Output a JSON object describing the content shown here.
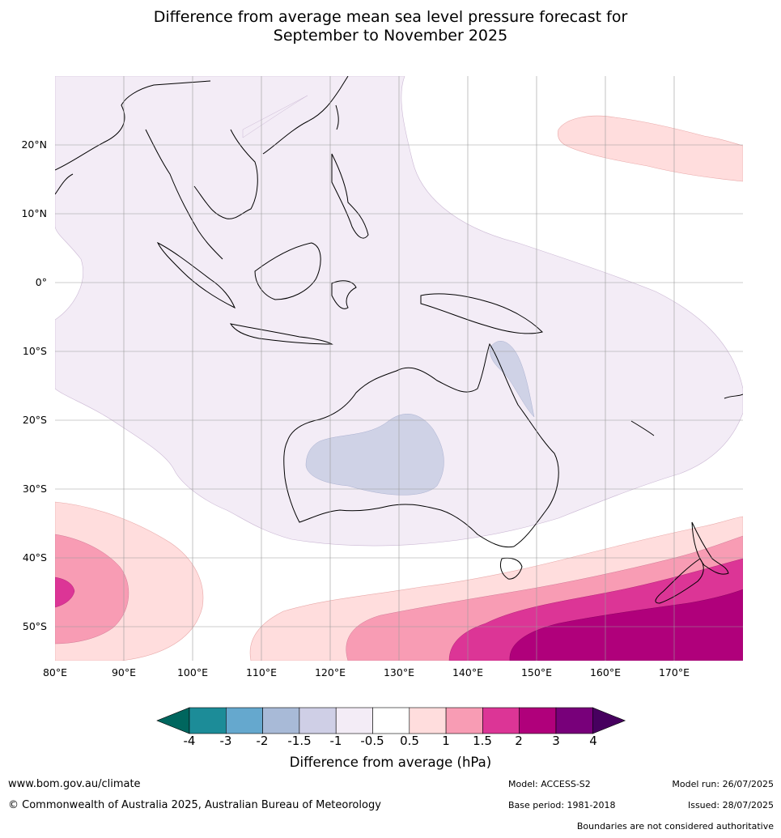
{
  "title_line1": "Difference from average mean sea level pressure forecast for",
  "title_line2": "September to November 2025",
  "lat_labels": [
    "20°N",
    "10°N",
    "0°",
    "10°S",
    "20°S",
    "30°S",
    "40°S",
    "50°S"
  ],
  "lon_labels": [
    "80°E",
    "90°E",
    "100°E",
    "110°E",
    "120°E",
    "130°E",
    "140°E",
    "150°E",
    "160°E",
    "170°E"
  ],
  "colorbar": {
    "label": "Difference from average (hPa)",
    "ticks": [
      "-4",
      "-3",
      "-2",
      "-1.5",
      "-1",
      "-0.5",
      "0.5",
      "1",
      "1.5",
      "2",
      "3",
      "4"
    ],
    "colors": [
      "#1c8c98",
      "#65a8ce",
      "#a8bad7",
      "#cfcfe6",
      "#f3ecf6",
      "#ffffff",
      "#ffdddd",
      "#f89cb4",
      "#dc3596",
      "#b0007b",
      "#78007a"
    ],
    "low_extend_color": "#00665e",
    "high_extend_color": "#47005f"
  },
  "footer": {
    "url": "www.bom.gov.au/climate",
    "copyright": "© Commonwealth of Australia 2025, Australian Bureau of Meteorology",
    "model": "Model: ACCESS-S2",
    "model_run": "Model run: 26/07/2025",
    "base_period": "Base period: 1981-2018",
    "issued": "Issued: 28/07/2025",
    "disclaimer": "Boundaries are not considered authoritative"
  }
}
